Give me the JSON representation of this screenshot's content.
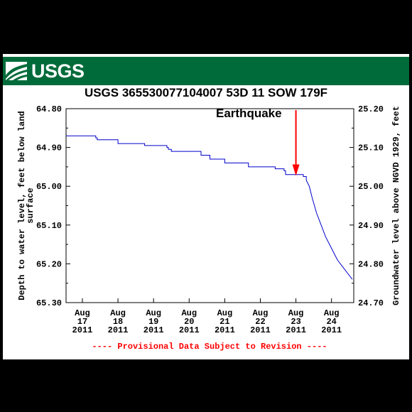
{
  "header": {
    "logo_text": "USGS",
    "title": "USGS 365530077104007 53D 11 SOW 179F"
  },
  "colors": {
    "banner": "#006B3A",
    "series_line": "#0000CC",
    "annotation": "#FF0000",
    "footnote": "#FF0000"
  },
  "chart_data": {
    "type": "line",
    "title": "USGS 365530077104007 53D 11 SOW 179F",
    "ylabel": "Depth to water level, feet below land surface",
    "ylabel_lines": [
      "Depth to water level, feet below land",
      "surface"
    ],
    "y2label": "Groundwater level above NGVD 1929, feet",
    "ylim": [
      64.8,
      65.3
    ],
    "y_inverted": true,
    "y_ticks": [
      "64.80",
      "64.90",
      "65.00",
      "65.10",
      "65.20",
      "65.30"
    ],
    "y2lim": [
      24.7,
      25.2
    ],
    "y2_ticks": [
      "25.20",
      "25.10",
      "25.00",
      "24.90",
      "24.80",
      "24.70"
    ],
    "xlim": [
      "2011-08-16T13:00",
      "2011-08-24T15:00"
    ],
    "x_ticks": [
      {
        "month": "Aug",
        "day": "17",
        "year": "2011",
        "date": "2011-08-17"
      },
      {
        "month": "Aug",
        "day": "18",
        "year": "2011",
        "date": "2011-08-18"
      },
      {
        "month": "Aug",
        "day": "19",
        "year": "2011",
        "date": "2011-08-19"
      },
      {
        "month": "Aug",
        "day": "20",
        "year": "2011",
        "date": "2011-08-20"
      },
      {
        "month": "Aug",
        "day": "21",
        "year": "2011",
        "date": "2011-08-21"
      },
      {
        "month": "Aug",
        "day": "22",
        "year": "2011",
        "date": "2011-08-22"
      },
      {
        "month": "Aug",
        "day": "23",
        "year": "2011",
        "date": "2011-08-23"
      },
      {
        "month": "Aug",
        "day": "24",
        "year": "2011",
        "date": "2011-08-24"
      }
    ],
    "grid": false,
    "series": [
      {
        "x": [
          "2011-08-16T13:00",
          "2011-08-17T09:00",
          "2011-08-17T09:00",
          "2011-08-17T10:00",
          "2011-08-17T10:00",
          "2011-08-18T00:00",
          "2011-08-18T00:00",
          "2011-08-18T18:00",
          "2011-08-18T18:00",
          "2011-08-19T09:00",
          "2011-08-19T09:00",
          "2011-08-19T10:00",
          "2011-08-19T10:00",
          "2011-08-19T12:00",
          "2011-08-19T12:00",
          "2011-08-19T12:00",
          "2011-08-19T12:00",
          "2011-08-20T08:00",
          "2011-08-20T08:00",
          "2011-08-20T14:00",
          "2011-08-20T14:00",
          "2011-08-20T15:00",
          "2011-08-20T15:00",
          "2011-08-21T00:00",
          "2011-08-21T00:00",
          "2011-08-21T16:00",
          "2011-08-21T16:00",
          "2011-08-22T10:00",
          "2011-08-22T10:00",
          "2011-08-22T16:00",
          "2011-08-22T16:00",
          "2011-08-22T17:00",
          "2011-08-22T17:00",
          "2011-08-23T00:00",
          "2011-08-23T00:00",
          "2011-08-23T05:00",
          "2011-08-23T05:00",
          "2011-08-23T07:00",
          "2011-08-23T07:00",
          "2011-08-23T09:00",
          "2011-08-23T11:00",
          "2011-08-23T14:00",
          "2011-08-23T17:00",
          "2011-08-23T20:00",
          "2011-08-24T00:00",
          "2011-08-24T04:00",
          "2011-08-24T08:00",
          "2011-08-24T11:00",
          "2011-08-24T14:00"
        ],
        "y": [
          64.87,
          64.87,
          64.875,
          64.875,
          64.88,
          64.88,
          64.89,
          64.89,
          64.895,
          64.895,
          64.9,
          64.9,
          64.905,
          64.905,
          64.91,
          64.91,
          64.91,
          64.91,
          64.92,
          64.92,
          64.93,
          64.93,
          64.93,
          64.93,
          64.94,
          64.94,
          64.95,
          64.95,
          64.955,
          64.955,
          64.96,
          64.96,
          64.97,
          64.97,
          64.97,
          64.97,
          64.975,
          64.975,
          64.985,
          65.0,
          65.03,
          65.07,
          65.1,
          65.13,
          65.16,
          65.19,
          65.21,
          65.225,
          65.24
        ]
      }
    ],
    "annotations": [
      {
        "text": "Earthquake",
        "x": "2011-08-23T00:00",
        "y": 64.975
      }
    ],
    "footnote": "---- Provisional Data Subject to Revision ----"
  }
}
